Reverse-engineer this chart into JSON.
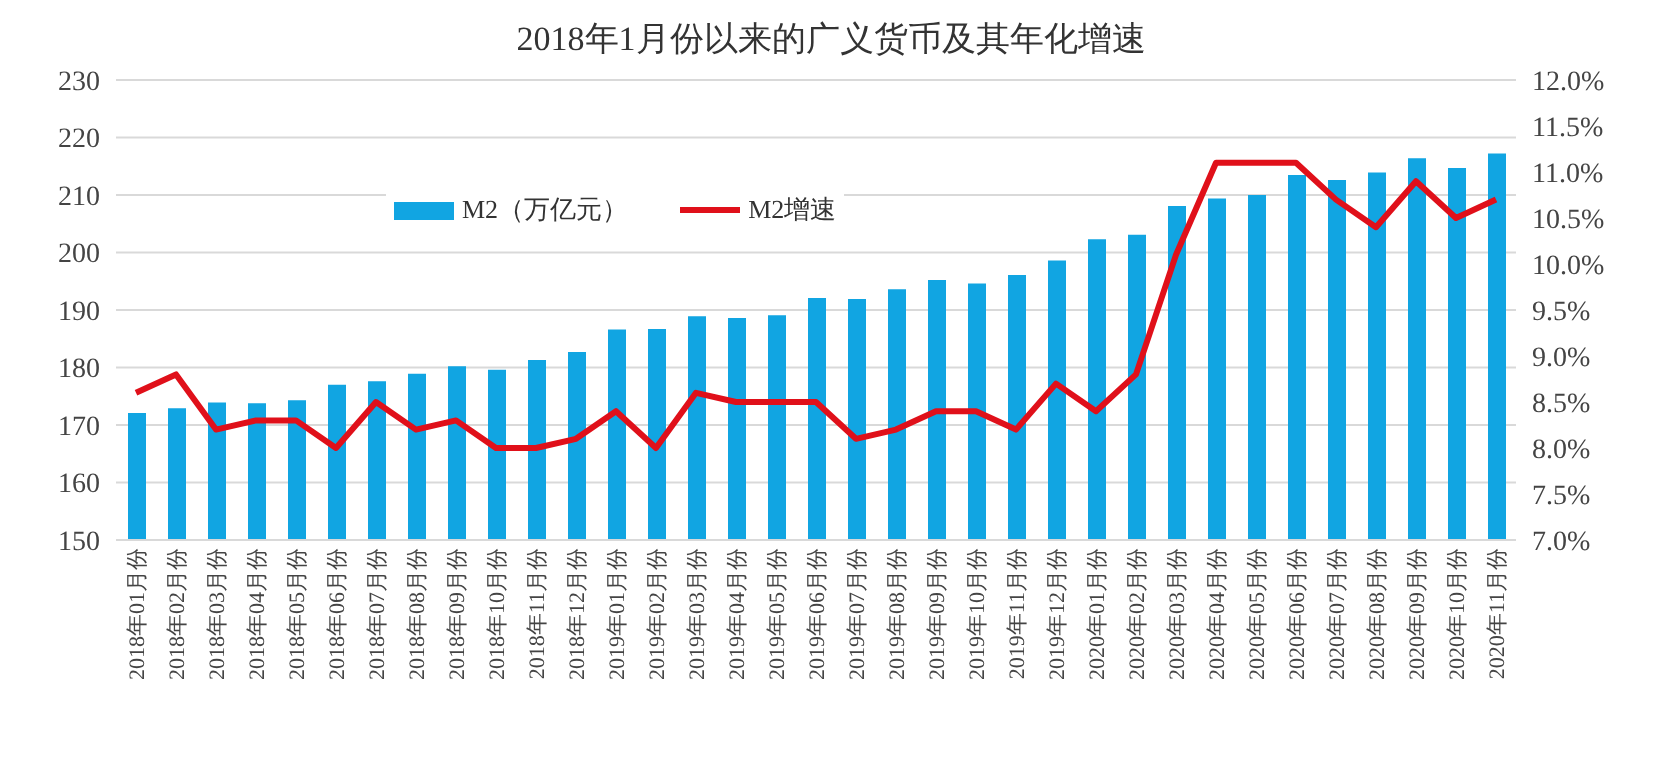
{
  "chart_data": {
    "type": "bar",
    "title": "2018年1月份以来的广义货币及其年化增速",
    "categories": [
      "2018年01月份",
      "2018年02月份",
      "2018年03月份",
      "2018年04月份",
      "2018年05月份",
      "2018年06月份",
      "2018年07月份",
      "2018年08月份",
      "2018年09月份",
      "2018年10月份",
      "2018年11月份",
      "2018年12月份",
      "2019年01月份",
      "2019年02月份",
      "2019年03月份",
      "2019年04月份",
      "2019年05月份",
      "2019年06月份",
      "2019年07月份",
      "2019年08月份",
      "2019年09月份",
      "2019年10月份",
      "2019年11月份",
      "2019年12月份",
      "2020年01月份",
      "2020年02月份",
      "2020年03月份",
      "2020年04月份",
      "2020年05月份",
      "2020年06月份",
      "2020年07月份",
      "2020年08月份",
      "2020年09月份",
      "2020年10月份",
      "2020年11月份"
    ],
    "series": [
      {
        "name": "M2（万亿元）",
        "color": "#11a5e2",
        "values": [
          172.1,
          172.9,
          173.9,
          173.8,
          174.3,
          177.0,
          177.6,
          178.9,
          180.2,
          179.6,
          181.3,
          182.7,
          186.6,
          186.7,
          188.9,
          188.6,
          189.1,
          192.1,
          191.9,
          193.6,
          195.2,
          194.6,
          196.1,
          198.6,
          202.3,
          203.1,
          208.1,
          209.4,
          210.0,
          213.5,
          212.6,
          213.9,
          216.4,
          214.7,
          217.2
        ]
      },
      {
        "name": "M2增速",
        "type": "line",
        "axis": "y2",
        "color": "#e0101a",
        "values": [
          8.6,
          8.8,
          8.2,
          8.3,
          8.3,
          8.0,
          8.5,
          8.2,
          8.3,
          8.0,
          8.0,
          8.1,
          8.4,
          8.0,
          8.6,
          8.5,
          8.5,
          8.5,
          8.1,
          8.2,
          8.4,
          8.4,
          8.2,
          8.7,
          8.4,
          8.8,
          10.1,
          11.1,
          11.1,
          11.1,
          10.7,
          10.4,
          10.9,
          10.5,
          10.7
        ]
      }
    ],
    "ylim": [
      150,
      230
    ],
    "yticks": [
      150,
      160,
      170,
      180,
      190,
      200,
      210,
      220,
      230
    ],
    "y2lim": [
      7,
      12
    ],
    "y2ticks": [
      {
        "value": 7,
        "label": "7.0%"
      },
      {
        "value": 7.5,
        "label": "7.5%"
      },
      {
        "value": 8,
        "label": "8.0%"
      },
      {
        "value": 8.5,
        "label": "8.5%"
      },
      {
        "value": 9,
        "label": "9.0%"
      },
      {
        "value": 9.5,
        "label": "9.5%"
      },
      {
        "value": 10,
        "label": "10.0%"
      },
      {
        "value": 10.5,
        "label": "10.5%"
      },
      {
        "value": 11,
        "label": "11.0%"
      },
      {
        "value": 11.5,
        "label": "11.5%"
      },
      {
        "value": 12,
        "label": "12.0%"
      }
    ],
    "grid": "y",
    "legend": "top left",
    "marker": "none",
    "line_style": "solid"
  }
}
